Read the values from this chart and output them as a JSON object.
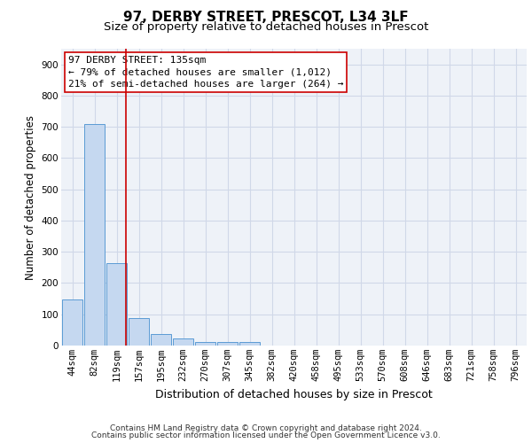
{
  "title1": "97, DERBY STREET, PRESCOT, L34 3LF",
  "title2": "Size of property relative to detached houses in Prescot",
  "xlabel": "Distribution of detached houses by size in Prescot",
  "ylabel": "Number of detached properties",
  "categories": [
    "44sqm",
    "82sqm",
    "119sqm",
    "157sqm",
    "195sqm",
    "232sqm",
    "270sqm",
    "307sqm",
    "345sqm",
    "382sqm",
    "420sqm",
    "458sqm",
    "495sqm",
    "533sqm",
    "570sqm",
    "608sqm",
    "646sqm",
    "683sqm",
    "721sqm",
    "758sqm",
    "796sqm"
  ],
  "values": [
    148,
    710,
    265,
    87,
    37,
    22,
    12,
    12,
    10,
    0,
    0,
    0,
    0,
    0,
    0,
    0,
    0,
    0,
    0,
    0,
    0
  ],
  "bar_color": "#c5d8f0",
  "bar_edge_color": "#5b9bd5",
  "grid_color": "#d0d8e8",
  "background_color": "#eef2f8",
  "annotation_line1": "97 DERBY STREET: 135sqm",
  "annotation_line2": "← 79% of detached houses are smaller (1,012)",
  "annotation_line3": "21% of semi-detached houses are larger (264) →",
  "annotation_box_color": "#ffffff",
  "annotation_border_color": "#cc0000",
  "ylim": [
    0,
    950
  ],
  "yticks": [
    0,
    100,
    200,
    300,
    400,
    500,
    600,
    700,
    800,
    900
  ],
  "footer1": "Contains HM Land Registry data © Crown copyright and database right 2024.",
  "footer2": "Contains public sector information licensed under the Open Government Licence v3.0.",
  "title1_fontsize": 11,
  "title2_fontsize": 9.5,
  "xlabel_fontsize": 9,
  "ylabel_fontsize": 8.5,
  "tick_fontsize": 7.5,
  "annotation_fontsize": 8,
  "footer_fontsize": 6.5
}
